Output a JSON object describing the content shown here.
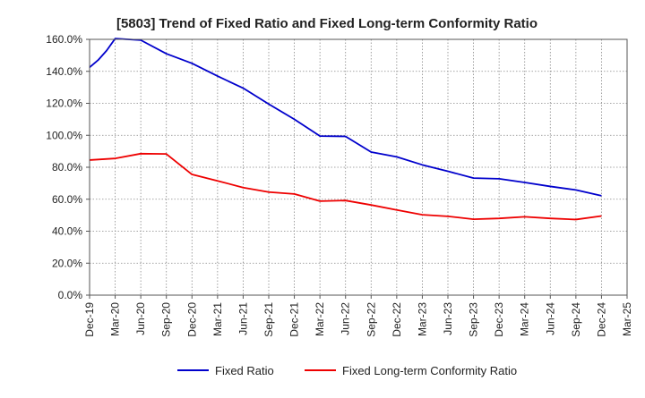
{
  "chart_data": {
    "type": "line",
    "title": "[5803]  Trend of Fixed Ratio and Fixed Long-term Conformity Ratio",
    "xlabel": "",
    "ylabel": "",
    "ylim": [
      0,
      160
    ],
    "y_ticks": [
      0,
      20,
      40,
      60,
      80,
      100,
      120,
      140,
      160
    ],
    "y_tick_labels": [
      "0.0%",
      "20.0%",
      "40.0%",
      "60.0%",
      "80.0%",
      "100.0%",
      "120.0%",
      "140.0%",
      "160.0%"
    ],
    "x_tick_labels": [
      "Dec-19",
      "Mar-20",
      "Jun-20",
      "Sep-20",
      "Dec-20",
      "Mar-21",
      "Jun-21",
      "Sep-21",
      "Dec-21",
      "Mar-22",
      "Jun-22",
      "Sep-22",
      "Dec-22",
      "Mar-23",
      "Jun-23",
      "Sep-23",
      "Dec-23",
      "Mar-24",
      "Jun-24",
      "Sep-24",
      "Dec-24",
      "Mar-25"
    ],
    "grid": true,
    "legend_position": "bottom",
    "series": [
      {
        "name": "Fixed Ratio",
        "color": "#0000cc",
        "x": [
          "Dec-19",
          "Jan-20",
          "Feb-20",
          "Mar-20",
          "Jun-20",
          "Sep-20",
          "Dec-20",
          "Mar-21",
          "Jun-21",
          "Sep-21",
          "Dec-21",
          "Mar-22",
          "Jun-22",
          "Sep-22",
          "Dec-22",
          "Mar-23",
          "Jun-23",
          "Sep-23",
          "Dec-23",
          "Mar-24",
          "Jun-24",
          "Sep-24",
          "Dec-24"
        ],
        "values": [
          142.5,
          147,
          153,
          160.5,
          159.5,
          151,
          145,
          137,
          129.5,
          119.5,
          110,
          99.5,
          99.3,
          89.5,
          86.5,
          81.5,
          77.5,
          73.2,
          72.8,
          70.5,
          68,
          65.8,
          62.2
        ]
      },
      {
        "name": "Fixed Long-term Conformity Ratio",
        "color": "#ee0000",
        "x": [
          "Dec-19",
          "Mar-20",
          "Jun-20",
          "Sep-20",
          "Dec-20",
          "Mar-21",
          "Jun-21",
          "Sep-21",
          "Dec-21",
          "Mar-22",
          "Jun-22",
          "Sep-22",
          "Dec-22",
          "Mar-23",
          "Jun-23",
          "Sep-23",
          "Dec-23",
          "Mar-24",
          "Jun-24",
          "Sep-24",
          "Dec-24"
        ],
        "values": [
          84.5,
          85.5,
          88.5,
          88.3,
          75.5,
          71.5,
          67.3,
          64.5,
          63.3,
          58.8,
          59.2,
          56.4,
          53.3,
          50.3,
          49.3,
          47.5,
          48,
          49,
          48,
          47.3,
          49.5
        ]
      }
    ]
  }
}
